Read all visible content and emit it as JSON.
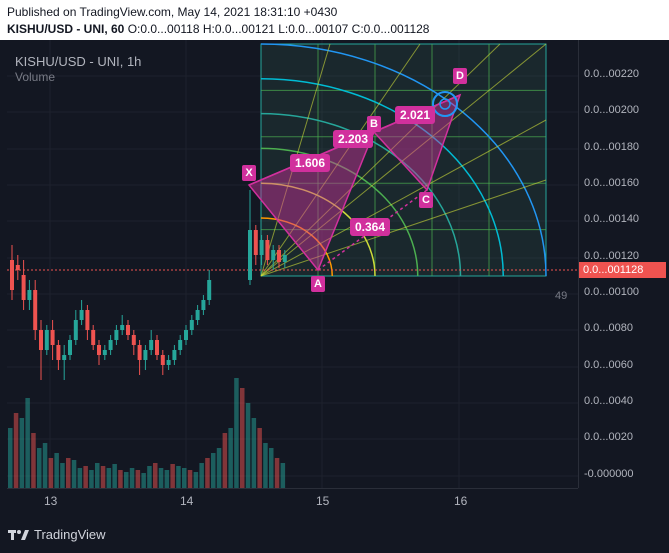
{
  "header": {
    "published": "Published on TradingView.com, May 14, 2021 18:31:10 +0430",
    "symbol_line": "KISHU/USD - UNI, 60",
    "ohlc": "O:0.0...00118 H:0.0...00121 L:0.0...00107 C:0.0...001128"
  },
  "legend": {
    "symbol": "KISHU/USD - UNI, 1h",
    "volume": "Volume"
  },
  "price_axis": {
    "labels": [
      "0.0...00220",
      "0.0...00200",
      "0.0...00180",
      "0.0...00160",
      "0.0...00140",
      "0.0...00120",
      "0.0...00100",
      "0.0...0080",
      "0.0...0060",
      "0.0...0040",
      "0.0...0020",
      "-0.000000"
    ],
    "current_price": "0.0...001128",
    "current_price_color": "#ef5350",
    "volume_scale": "49"
  },
  "time_axis": {
    "labels": [
      "13",
      "14",
      "15",
      "16"
    ]
  },
  "pattern": {
    "points": [
      "X",
      "A",
      "B",
      "C",
      "D"
    ],
    "ratios": {
      "xab": "1.606",
      "abc": "2.203",
      "bcd": "2.021",
      "xad": "0.364"
    },
    "color": "#d1309d"
  },
  "colors": {
    "up": "#26a69a",
    "down": "#ef5350",
    "background": "#131722"
  },
  "footer": {
    "brand": "TradingView"
  }
}
